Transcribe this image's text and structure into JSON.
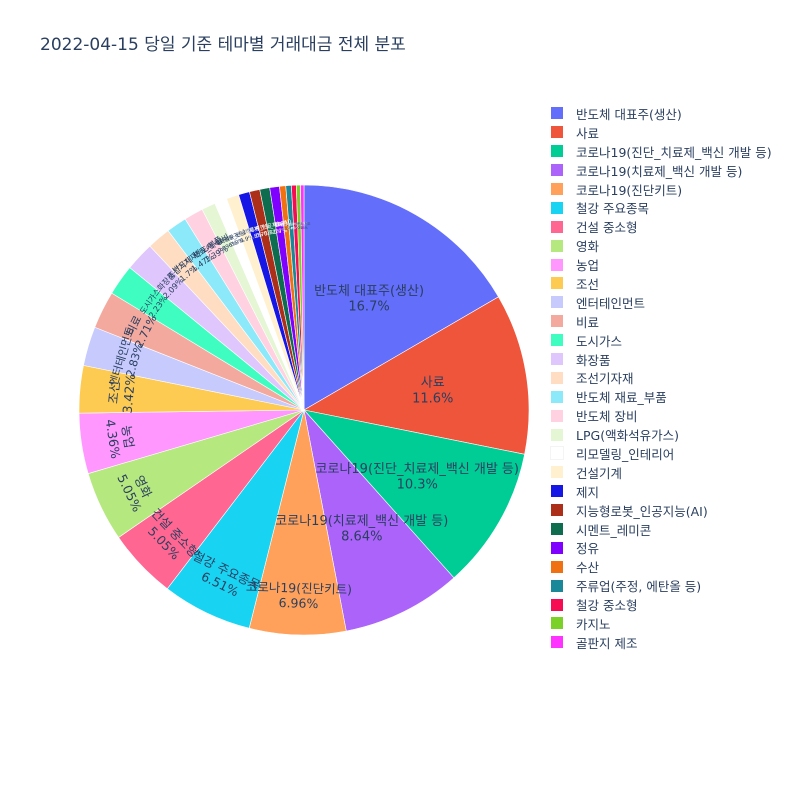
{
  "chart_data": {
    "type": "pie",
    "title": "2022-04-15 당일 기준 테마별 거래대금 전체 분포",
    "slices": [
      {
        "label": "반도체 대표주(생산)",
        "value": 16.7,
        "color": "#636efa",
        "text": "16.7%"
      },
      {
        "label": "사료",
        "value": 11.6,
        "color": "#EF553B",
        "text": "11.6%"
      },
      {
        "label": "코로나19(진단_치료제_백신 개발 등)",
        "value": 10.3,
        "color": "#00cc96",
        "text": "10.3%"
      },
      {
        "label": "코로나19(치료제_백신 개발 등)",
        "value": 8.64,
        "color": "#ab63fa",
        "text": "8.64%"
      },
      {
        "label": "코로나19(진단키트)",
        "value": 6.96,
        "color": "#FFA15A",
        "text": "6.96%"
      },
      {
        "label": "철강 주요종목",
        "value": 6.51,
        "color": "#19d3f3",
        "text": "6.51%"
      },
      {
        "label": "건설 중소형",
        "value": 5.05,
        "color": "#FF6692",
        "text": "5.05%"
      },
      {
        "label": "영화",
        "value": 5.05,
        "color": "#B6E880",
        "text": "5.05%"
      },
      {
        "label": "농업",
        "value": 4.36,
        "color": "#FF97FF",
        "text": "4.36%"
      },
      {
        "label": "조선",
        "value": 3.42,
        "color": "#FECB52",
        "text": "3.42%"
      },
      {
        "label": "엔터테인먼트",
        "value": 2.83,
        "color": "#C6CAFD",
        "text": "2.83%"
      },
      {
        "label": "비료",
        "value": 2.71,
        "color": "#F4A99F",
        "text": "2.71%"
      },
      {
        "label": "도시가스",
        "value": 2.23,
        "color": "#3FFDC1",
        "text": "2.23%"
      },
      {
        "label": "화장품",
        "value": 2.09,
        "color": "#DFC6FD",
        "text": "2.09%"
      },
      {
        "label": "조선기자재",
        "value": 1.7,
        "color": "#FFDDC3",
        "text": "1.7%"
      },
      {
        "label": "반도체 재료_부품",
        "value": 1.47,
        "color": "#8CE9F9",
        "text": "1.47%"
      },
      {
        "label": "반도체 장비",
        "value": 1.39,
        "color": "#FFD1E1",
        "text": "1.39%"
      },
      {
        "label": "LPG(액화석유가스)",
        "value": 0.996,
        "color": "#E4F6D4",
        "text": "0.996%"
      },
      {
        "label": "리모델링_인테리어",
        "value": 0.9,
        "color": "#FFFFFF",
        "text": "0.9%"
      },
      {
        "label": "건설기계",
        "value": 0.9,
        "color": "#FFF0D0",
        "text": "0.9%"
      },
      {
        "label": "제지",
        "value": 0.8,
        "color": "#1616E5",
        "text": "0.8%"
      },
      {
        "label": "지능형로봇_인공지능(AI)",
        "value": 0.75,
        "color": "#AB2F19",
        "text": "0.75%"
      },
      {
        "label": "시멘트_레미콘",
        "value": 0.72,
        "color": "#0E6D4E",
        "text": "0.72%"
      },
      {
        "label": "정유",
        "value": 0.7,
        "color": "#7F00FF",
        "text": "0.7%"
      },
      {
        "label": "수산",
        "value": 0.45,
        "color": "#F07111",
        "text": "0.45%"
      },
      {
        "label": "주류업(주정, 에탄올 등)",
        "value": 0.4,
        "color": "#1A8899",
        "text": "0.4%"
      },
      {
        "label": "철강 중소형",
        "value": 0.35,
        "color": "#F50C52",
        "text": "0.35%"
      },
      {
        "label": "카지노",
        "value": 0.3,
        "color": "#7CD128",
        "text": "0.3%"
      },
      {
        "label": "골판지 제조",
        "value": 0.25,
        "color": "#FF33FF",
        "text": "0.25%"
      }
    ],
    "direction": "clockwise",
    "start_angle": "12 o'clock",
    "legend_position": "right"
  }
}
